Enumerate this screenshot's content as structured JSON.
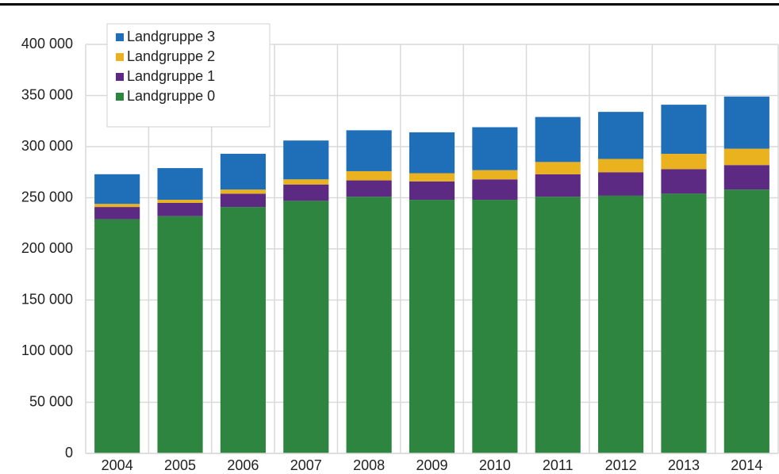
{
  "chart_data": {
    "type": "stacked_bar",
    "categories": [
      "2004",
      "2005",
      "2006",
      "2007",
      "2008",
      "2009",
      "2010",
      "2011",
      "2012",
      "2013",
      "2014"
    ],
    "series": [
      {
        "name": "Landgruppe 0",
        "color": "#2e8540",
        "values": [
          229000,
          232000,
          241000,
          247000,
          251000,
          248000,
          248000,
          251000,
          252000,
          254000,
          258000
        ]
      },
      {
        "name": "Landgruppe 1",
        "color": "#5c2a82",
        "values": [
          12000,
          13000,
          13000,
          16000,
          16000,
          18000,
          20000,
          22000,
          23000,
          24000,
          24000
        ]
      },
      {
        "name": "Landgruppe 2",
        "color": "#eab21f",
        "values": [
          3000,
          3000,
          4000,
          5000,
          9000,
          8000,
          9000,
          12000,
          13000,
          15000,
          16000
        ]
      },
      {
        "name": "Landgruppe 3",
        "color": "#1f6fb8",
        "values": [
          29000,
          31000,
          35000,
          38000,
          40000,
          40000,
          42000,
          44000,
          46000,
          48000,
          51000
        ]
      }
    ],
    "ylim": [
      0,
      400000
    ],
    "yticks": [
      0,
      {
        "value": 50000,
        "label": "50 000"
      },
      {
        "value": 100000,
        "label": "100 000"
      },
      {
        "value": 150000,
        "label": "150 000"
      },
      {
        "value": 200000,
        "label": "200 000"
      },
      {
        "value": 250000,
        "label": "250 000"
      },
      {
        "value": 300000,
        "label": "300 000"
      },
      {
        "value": 350000,
        "label": "350 000"
      },
      {
        "value": 400000,
        "label": "400 000"
      }
    ],
    "grid": true,
    "legend": "upper left"
  }
}
